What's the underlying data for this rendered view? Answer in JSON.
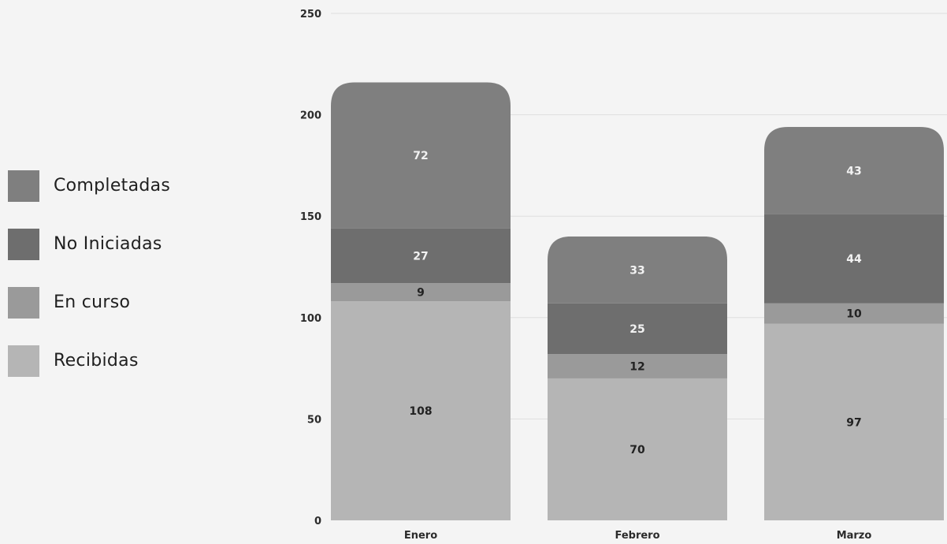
{
  "chart_data": {
    "type": "bar",
    "stacked": true,
    "categories": [
      "Enero",
      "Febrero",
      "Marzo"
    ],
    "series": [
      {
        "name": "Recibidas",
        "values": [
          108,
          70,
          97
        ],
        "color": "#b5b5b5"
      },
      {
        "name": "En curso",
        "values": [
          9,
          12,
          10
        ],
        "color": "#9a9a9a"
      },
      {
        "name": "No Iniciadas",
        "values": [
          27,
          25,
          44
        ],
        "color": "#6e6e6e"
      },
      {
        "name": "Completadas",
        "values": [
          72,
          33,
          43
        ],
        "color": "#7f7f7f"
      }
    ],
    "ylim": [
      0,
      250
    ],
    "yticks": [
      0,
      50,
      100,
      150,
      200,
      250
    ],
    "grid": true,
    "legend_position": "left",
    "title": "",
    "xlabel": "",
    "ylabel": ""
  },
  "legend": {
    "items": [
      {
        "label": "Completadas",
        "color": "#7f7f7f"
      },
      {
        "label": "No Iniciadas",
        "color": "#6e6e6e"
      },
      {
        "label": "En curso",
        "color": "#9a9a9a"
      },
      {
        "label": "Recibidas",
        "color": "#b5b5b5"
      }
    ]
  }
}
